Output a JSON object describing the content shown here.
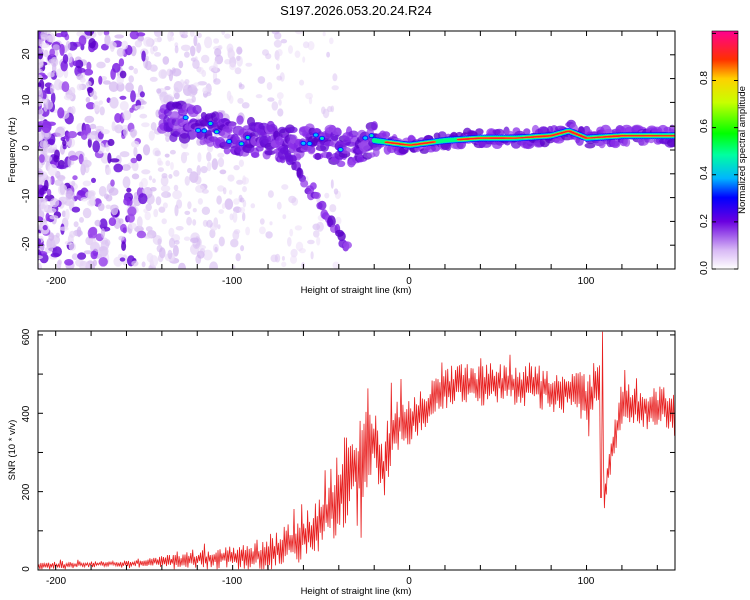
{
  "chart_data": [
    {
      "type": "heatmap",
      "title": "S197.2026.053.20.24.R24",
      "xlabel": "Height of straight line (km)",
      "ylabel": "Frequency (Hz)",
      "xlim": [
        -210,
        150
      ],
      "ylim": [
        -25,
        25
      ],
      "xticks": [
        "-200",
        "-100",
        "0",
        "100"
      ],
      "yticks": [
        "20",
        "10",
        "0",
        "-10",
        "-20"
      ],
      "colorbar_label": "Normalized spectral amplitude",
      "colorbar_ticks": [
        "0.0",
        "0.2",
        "0.4",
        "0.6",
        "0.8"
      ],
      "colorbar_range": [
        0,
        1
      ],
      "colors": {
        "low": "#e6d4f5",
        "mid": "#7a1ee0",
        "high": "#ff2020"
      },
      "features": {
        "ridge_x": [
          -130,
          -120,
          -110,
          -100,
          -90,
          -80,
          -70,
          -60,
          -50,
          -40,
          -30,
          -20,
          -10,
          0,
          10,
          20,
          40,
          60,
          80,
          90,
          100,
          120,
          150
        ],
        "ridge_y": [
          6,
          5.5,
          4,
          3,
          2.5,
          1.5,
          1,
          2,
          1.5,
          0.5,
          1,
          2,
          1.5,
          1,
          1.5,
          2,
          2.5,
          2.5,
          3,
          4,
          2.5,
          3,
          3
        ],
        "branch1_x": [
          -80,
          -75,
          -70,
          -65,
          -60,
          -55
        ],
        "branch1_y": [
          5,
          2,
          -1,
          -4,
          -7,
          -10
        ],
        "branch2_x": [
          -55,
          -50,
          -45,
          -40,
          -35
        ],
        "branch2_y": [
          -8,
          -12,
          -15,
          -18,
          -21
        ]
      }
    },
    {
      "type": "line",
      "xlabel": "Height of straight line (km)",
      "ylabel": "SNR (10 * v/v)",
      "xlim": [
        -210,
        150
      ],
      "ylim": [
        0,
        610
      ],
      "xticks": [
        "-200",
        "-100",
        "0",
        "100"
      ],
      "yticks": [
        "600",
        "400",
        "200",
        "0"
      ],
      "series": [
        {
          "name": "SNR",
          "color": "#e82020",
          "x": [
            -210,
            -180,
            -150,
            -130,
            -110,
            -90,
            -75,
            -60,
            -50,
            -40,
            -30,
            -25,
            -20,
            -15,
            -10,
            0,
            10,
            20,
            30,
            40,
            50,
            60,
            70,
            80,
            90,
            100,
            108,
            110,
            120,
            130,
            140,
            150
          ],
          "y": [
            10,
            15,
            18,
            25,
            30,
            35,
            50,
            80,
            120,
            200,
            260,
            310,
            320,
            250,
            360,
            380,
            420,
            460,
            480,
            470,
            480,
            470,
            470,
            460,
            460,
            440,
            470,
            190,
            440,
            410,
            420,
            410
          ],
          "amp": [
            10,
            8,
            8,
            20,
            25,
            35,
            50,
            60,
            80,
            120,
            130,
            120,
            90,
            90,
            80,
            60,
            50,
            60,
            55,
            55,
            55,
            55,
            55,
            60,
            60,
            60,
            100,
            40,
            50,
            50,
            50,
            50
          ]
        }
      ]
    }
  ]
}
